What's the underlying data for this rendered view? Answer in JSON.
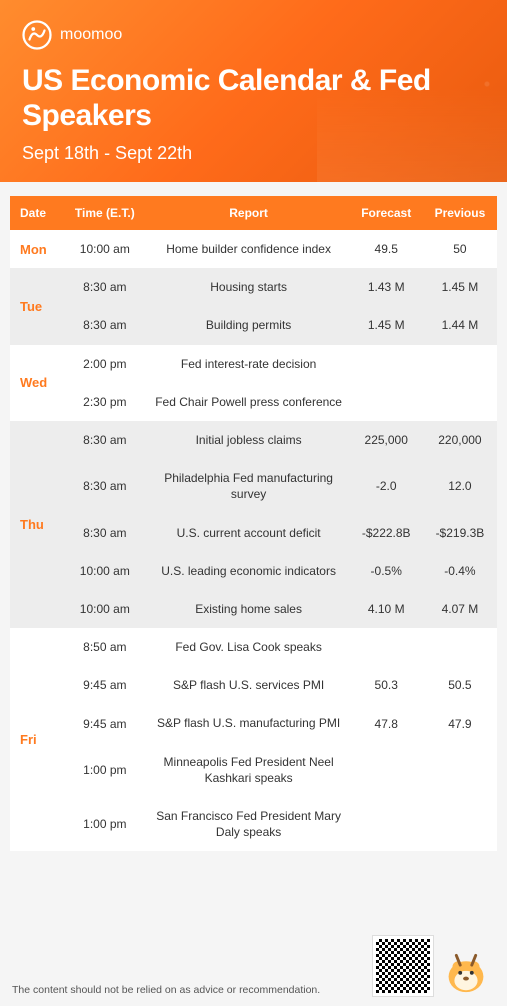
{
  "brand": {
    "name": "moomoo"
  },
  "header": {
    "title": "US Economic Calendar & Fed Speakers",
    "date_range": "Sept 18th - Sept 22th"
  },
  "columns": [
    "Date",
    "Time (E.T.)",
    "Report",
    "Forecast",
    "Previous"
  ],
  "colors": {
    "header_bg": "#ff7a1f",
    "accent": "#ff7a1f",
    "row_alt": "#ededed",
    "row_main": "#ffffff"
  },
  "days": [
    {
      "label": "Mon",
      "shade": "white",
      "rows": [
        {
          "time": "10:00 am",
          "report": "Home builder confidence index",
          "forecast": "49.5",
          "previous": "50"
        }
      ]
    },
    {
      "label": "Tue",
      "shade": "gray",
      "rows": [
        {
          "time": "8:30 am",
          "report": "Housing starts",
          "forecast": "1.43 M",
          "previous": "1.45 M"
        },
        {
          "time": "8:30 am",
          "report": "Building permits",
          "forecast": "1.45 M",
          "previous": "1.44 M"
        }
      ]
    },
    {
      "label": "Wed",
      "shade": "white",
      "rows": [
        {
          "time": "2:00 pm",
          "report": "Fed interest-rate decision",
          "forecast": "",
          "previous": ""
        },
        {
          "time": "2:30 pm",
          "report": "Fed Chair Powell press conference",
          "forecast": "",
          "previous": ""
        }
      ]
    },
    {
      "label": "Thu",
      "shade": "gray",
      "rows": [
        {
          "time": "8:30 am",
          "report": "Initial jobless claims",
          "forecast": "225,000",
          "previous": "220,000"
        },
        {
          "time": "8:30 am",
          "report": "Philadelphia Fed manufacturing survey",
          "forecast": "-2.0",
          "previous": "12.0"
        },
        {
          "time": "8:30 am",
          "report": "U.S. current account deficit",
          "forecast": "-$222.8B",
          "previous": "-$219.3B"
        },
        {
          "time": "10:00 am",
          "report": "U.S. leading economic indicators",
          "forecast": "-0.5%",
          "previous": "-0.4%"
        },
        {
          "time": "10:00 am",
          "report": "Existing home sales",
          "forecast": "4.10 M",
          "previous": "4.07 M"
        }
      ]
    },
    {
      "label": "Fri",
      "shade": "white",
      "rows": [
        {
          "time": "8:50 am",
          "report": "Fed Gov. Lisa Cook speaks",
          "forecast": "",
          "previous": ""
        },
        {
          "time": "9:45 am",
          "report": "S&P flash U.S. services PMI",
          "forecast": "50.3",
          "previous": "50.5"
        },
        {
          "time": "9:45 am",
          "report": "S&P flash U.S. manufacturing PMI",
          "forecast": "47.8",
          "previous": "47.9"
        },
        {
          "time": "1:00 pm",
          "report": "Minneapolis Fed President Neel Kashkari speaks",
          "forecast": "",
          "previous": ""
        },
        {
          "time": "1:00 pm",
          "report": "San Francisco Fed President Mary Daly speaks",
          "forecast": "",
          "previous": ""
        }
      ]
    }
  ],
  "footer": {
    "disclaimer": "The content should not be relied on as advice or recommendation."
  }
}
